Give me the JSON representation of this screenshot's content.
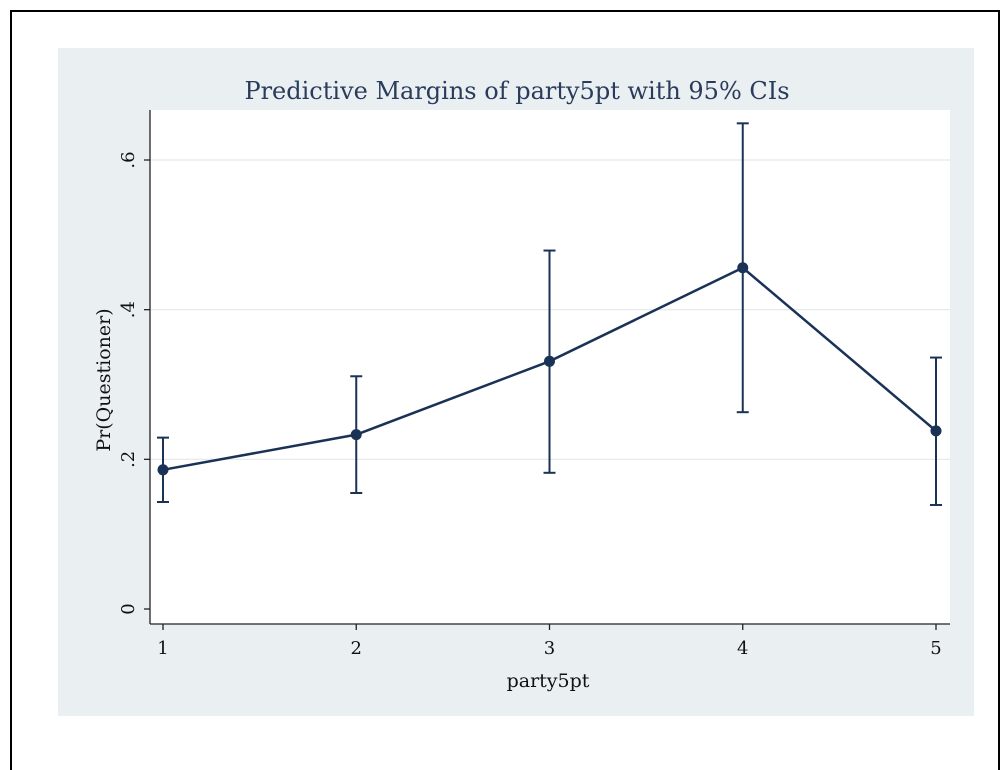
{
  "chart_data": {
    "type": "line",
    "title": "Predictive Margins of party5pt with 95% CIs",
    "xlabel": "party5pt",
    "ylabel": "Pr(Questioner)",
    "x": [
      1,
      2,
      3,
      4,
      5
    ],
    "x_tick_labels": [
      "1",
      "2",
      "3",
      "4",
      "5"
    ],
    "y_ticks": [
      0,
      0.2,
      0.4,
      0.6
    ],
    "y_tick_labels": [
      "0",
      ".2",
      ".4",
      ".6"
    ],
    "ylim": [
      0,
      0.665
    ],
    "xlim": [
      1,
      5
    ],
    "grid": true,
    "series": [
      {
        "values": [
          0.186,
          0.233,
          0.331,
          0.456,
          0.238
        ],
        "ci_lower": [
          0.143,
          0.155,
          0.182,
          0.263,
          0.139
        ],
        "ci_upper": [
          0.229,
          0.311,
          0.479,
          0.649,
          0.336
        ]
      }
    ],
    "colors": {
      "line": "#1a3256",
      "plot_background": "#ffffff",
      "outer_background": "#eaf0f2",
      "grid": "#e3e8ea",
      "title": "#2a3b5c"
    }
  }
}
